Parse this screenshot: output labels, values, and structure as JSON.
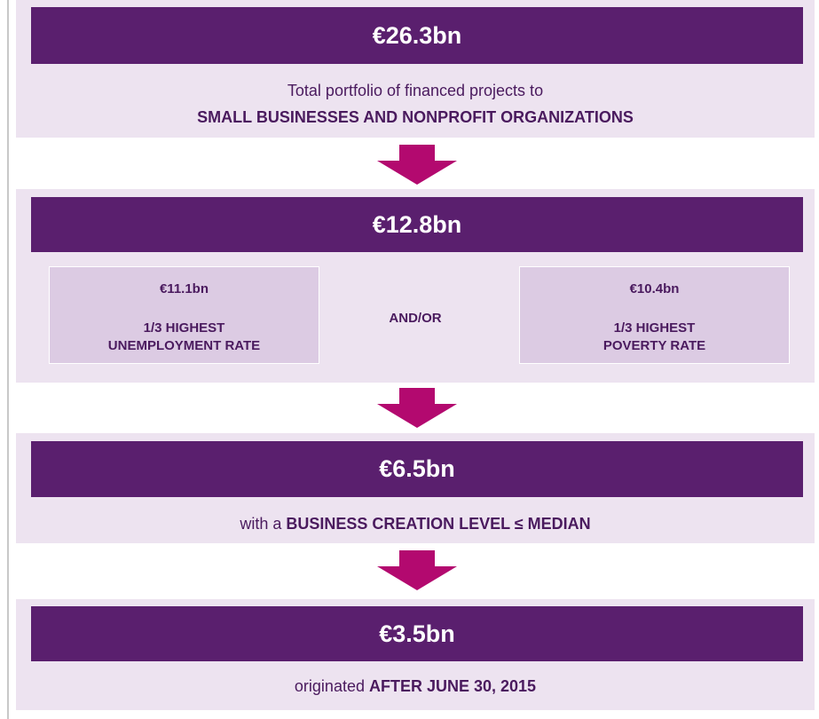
{
  "stages": [
    {
      "amount": "€26.3bn",
      "line1": "Total portfolio of financed projects to",
      "emphasis": "SMALL BUSINESSES AND NONPROFIT ORGANIZATIONS"
    },
    {
      "amount": "€12.8bn",
      "left": {
        "amount": "€11.1bn",
        "line1": "1/3 HIGHEST",
        "line2": "UNEMPLOYMENT RATE"
      },
      "connector": "AND/OR",
      "right": {
        "amount": "€10.4bn",
        "line1": "1/3 HIGHEST",
        "line2": "POVERTY RATE"
      }
    },
    {
      "amount": "€6.5bn",
      "prefix": "with a ",
      "emphasis": "BUSINESS CREATION LEVEL ≤ MEDIAN"
    },
    {
      "amount": "€3.5bn",
      "prefix": "originated ",
      "emphasis": "AFTER JUNE 30, 2015"
    }
  ]
}
